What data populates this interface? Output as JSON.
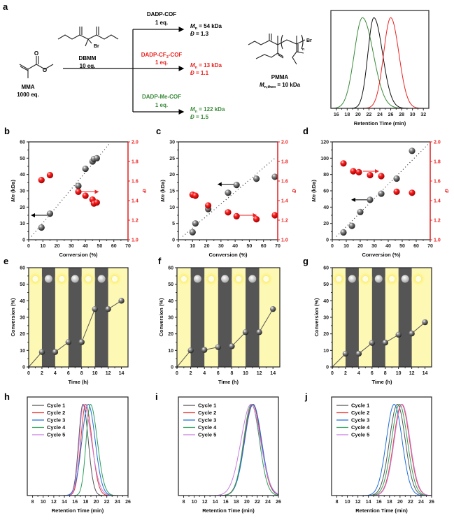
{
  "scheme": {
    "panel": "a",
    "monomer": "MMA",
    "monomer_eq": "1000 eq.",
    "initiator": "DBMM",
    "initiator_eq": "10 eq.",
    "br": "Br",
    "branches": [
      {
        "catalyst": "DADP-COF",
        "catalyst_sub": "",
        "catalyst_tail": "",
        "eq": "1 eq.",
        "mn_symbol": "M",
        "mn_sub": "n",
        "mn_value": " = 54 kDa",
        "d_symbol": "Đ",
        "d_value": " =  1.3",
        "color": "#000000"
      },
      {
        "catalyst": "DADP-CF",
        "catalyst_sub": "3",
        "catalyst_tail": "-COF",
        "eq": "1 eq.",
        "mn_symbol": "M",
        "mn_sub": "n",
        "mn_value": " = 13 kDa",
        "d_symbol": "Đ",
        "d_value": " =  1.1",
        "color": "#e8201e"
      },
      {
        "catalyst": "DADP-Me-COF",
        "catalyst_sub": "",
        "catalyst_tail": "",
        "eq": "1 eq.",
        "mn_symbol": "M",
        "mn_sub": "n",
        "mn_value": " = 122 kDa",
        "d_symbol": "Đ",
        "d_value": " =  1.5",
        "color": "#3a8a3a"
      }
    ],
    "product": "PMMA",
    "product_mn_symbol": "M",
    "product_mn_sub": "n,theo",
    "product_mn_value": " = 10 kDa",
    "repeat_n": "n"
  },
  "chart_data": [
    {
      "panel": "a",
      "type": "line",
      "title": "",
      "xlabel": "Retention Time (min)",
      "ylabel": "",
      "xlim": [
        15,
        33
      ],
      "ylim": [
        0,
        1.08
      ],
      "x_ticks": [
        "16",
        "18",
        "20",
        "22",
        "24",
        "26",
        "28",
        "30",
        "32"
      ],
      "x_tick_start": 16,
      "x_tick_step": 2,
      "series": [
        {
          "name": "DADP-Me-COF",
          "color": "#3a8a3a",
          "peak": 20.8,
          "width_left": 1.5,
          "width_right": 2.0
        },
        {
          "name": "DADP-COF",
          "color": "#111111",
          "peak": 22.9,
          "width_left": 1.1,
          "width_right": 1.6
        },
        {
          "name": "DADP-CF3-COF",
          "color": "#ee2222",
          "peak": 26.0,
          "width_left": 1.3,
          "width_right": 1.5
        }
      ],
      "legend": "none"
    },
    {
      "panel": "b",
      "type": "scatter",
      "xlabel": "Conversion (%)",
      "ylabel_symbol": "Mn",
      "ylabel": " (kDa)",
      "y2label": "Đ",
      "xlim": [
        0,
        70
      ],
      "ylim": [
        0,
        60
      ],
      "y2lim": [
        1.0,
        2.0
      ],
      "x_ticks": [
        "0",
        "10",
        "20",
        "30",
        "40",
        "50",
        "60",
        "70"
      ],
      "y_ticks": [
        "0",
        "10",
        "20",
        "30",
        "40",
        "50",
        "60"
      ],
      "y2_ticks": [
        "1.0",
        "1.2",
        "1.4",
        "1.6",
        "1.8",
        "2.0"
      ],
      "mn": {
        "x": [
          9,
          15,
          35,
          40,
          45,
          46,
          48
        ],
        "y": [
          7.5,
          16,
          33,
          43.5,
          48,
          49.5,
          50
        ]
      },
      "dispersity": {
        "x": [
          9,
          15,
          35,
          40,
          45,
          46,
          48
        ],
        "y": [
          1.61,
          1.66,
          1.49,
          1.45,
          1.41,
          1.37,
          1.38
        ]
      },
      "theory_line": {
        "x": [
          2,
          57
        ],
        "y": [
          2,
          59
        ]
      },
      "arrows": [
        {
          "axis": "left",
          "from": [
            13,
            15
          ],
          "to": [
            2,
            15
          ]
        },
        {
          "axis": "right",
          "from": [
            36,
            1.49
          ],
          "to": [
            49,
            1.49
          ]
        }
      ]
    },
    {
      "panel": "c",
      "type": "scatter",
      "xlabel": "Conversion (%)",
      "ylabel_symbol": "Mn",
      "ylabel": " (kDa)",
      "y2label": "Đ",
      "xlim": [
        0,
        70
      ],
      "ylim": [
        0,
        30
      ],
      "y2lim": [
        1.0,
        2.0
      ],
      "x_ticks": [
        "0",
        "10",
        "20",
        "30",
        "40",
        "50",
        "60",
        "70"
      ],
      "y_ticks": [
        "0",
        "5",
        "10",
        "15",
        "20",
        "25",
        "30"
      ],
      "y2_ticks": [
        "1.0",
        "1.2",
        "1.4",
        "1.6",
        "1.8",
        "2.0"
      ],
      "mn": {
        "x": [
          10,
          12,
          21,
          35,
          41,
          55,
          68
        ],
        "y": [
          2.3,
          5,
          9.4,
          14.4,
          16.8,
          18.7,
          19.3
        ]
      },
      "dispersity": {
        "x": [
          10,
          12,
          21,
          35,
          41,
          55,
          68
        ],
        "y": [
          1.46,
          1.45,
          1.35,
          1.28,
          1.24,
          1.21,
          1.25
        ]
      },
      "theory_line": {
        "x": [
          3,
          68
        ],
        "y": [
          1,
          25
        ]
      },
      "arrows": [
        {
          "axis": "left",
          "from": [
            39,
            17
          ],
          "to": [
            28,
            17
          ]
        },
        {
          "axis": "right",
          "from": [
            43,
            1.25
          ],
          "to": [
            55,
            1.25
          ]
        }
      ]
    },
    {
      "panel": "d",
      "type": "scatter",
      "xlabel": "Conversion (%)",
      "ylabel_symbol": "Mn",
      "ylabel": " (kDa)",
      "y2label": "Đ",
      "xlim": [
        0,
        70
      ],
      "ylim": [
        0,
        120
      ],
      "y2lim": [
        1.0,
        2.0
      ],
      "x_ticks": [
        "0",
        "10",
        "20",
        "30",
        "40",
        "50",
        "60",
        "70"
      ],
      "y_ticks": [
        "0",
        "20",
        "40",
        "60",
        "80",
        "100",
        "120"
      ],
      "y2_ticks": [
        "1.0",
        "1.2",
        "1.4",
        "1.6",
        "1.8",
        "2.0"
      ],
      "mn": {
        "x": [
          8,
          14,
          20,
          27,
          35,
          46,
          57
        ],
        "y": [
          9,
          17,
          34,
          49,
          56.5,
          75,
          109
        ]
      },
      "dispersity": {
        "x": [
          8,
          15,
          19,
          27,
          35,
          46,
          57
        ],
        "y": [
          1.78,
          1.7,
          1.69,
          1.66,
          1.65,
          1.49,
          1.48
        ]
      },
      "theory_line": {
        "x": [
          3,
          69
        ],
        "y": [
          4,
          118
        ]
      },
      "arrows": [
        {
          "axis": "left",
          "from": [
            25,
            49
          ],
          "to": [
            14,
            49
          ]
        },
        {
          "axis": "right",
          "from": [
            22,
            1.7
          ],
          "to": [
            33,
            1.7
          ]
        }
      ]
    },
    {
      "panel": "e",
      "type": "line",
      "xlabel": "Time (h)",
      "ylabel": "Conversion (%)",
      "xlim": [
        0,
        15
      ],
      "ylim": [
        0,
        60
      ],
      "x_ticks": [
        "0",
        "2",
        "4",
        "6",
        "8",
        "10",
        "12",
        "14"
      ],
      "y_ticks": [
        "0",
        "10",
        "20",
        "30",
        "40",
        "50",
        "60"
      ],
      "dark_intervals": [
        [
          2,
          4
        ],
        [
          6,
          8
        ],
        [
          10,
          12
        ]
      ],
      "x": [
        0,
        2,
        4,
        6,
        8,
        10,
        12,
        14
      ],
      "y": [
        0,
        9,
        9,
        15,
        15,
        35,
        35,
        40
      ]
    },
    {
      "panel": "f",
      "type": "line",
      "xlabel": "Time (h)",
      "ylabel": "Conversion (%)",
      "xlim": [
        0,
        15
      ],
      "ylim": [
        0,
        60
      ],
      "x_ticks": [
        "0",
        "2",
        "4",
        "6",
        "8",
        "10",
        "12",
        "14"
      ],
      "y_ticks": [
        "0",
        "10",
        "20",
        "30",
        "40",
        "50",
        "60"
      ],
      "dark_intervals": [
        [
          2,
          4
        ],
        [
          6,
          8
        ],
        [
          10,
          12
        ]
      ],
      "x": [
        0,
        2,
        4,
        6,
        8,
        10,
        12,
        14
      ],
      "y": [
        0,
        10,
        10.3,
        12,
        12.5,
        21,
        21,
        35
      ]
    },
    {
      "panel": "g",
      "type": "line",
      "xlabel": "Time (h)",
      "ylabel": "Conversion (%)",
      "xlim": [
        0,
        15
      ],
      "ylim": [
        0,
        60
      ],
      "x_ticks": [
        "0",
        "2",
        "4",
        "6",
        "8",
        "10",
        "12",
        "14"
      ],
      "y_ticks": [
        "0",
        "10",
        "20",
        "30",
        "40",
        "50",
        "60"
      ],
      "dark_intervals": [
        [
          2,
          4
        ],
        [
          6,
          8
        ],
        [
          10,
          12
        ]
      ],
      "x": [
        0,
        2,
        4,
        6,
        8,
        10,
        12,
        14
      ],
      "y": [
        0,
        8,
        8,
        14.5,
        14.7,
        19.5,
        20.2,
        27
      ]
    },
    {
      "panel": "h",
      "type": "line",
      "xlabel": "Retention Time (min)",
      "xlim": [
        7,
        26
      ],
      "ylim": [
        0,
        1.08
      ],
      "x_ticks": [
        "8",
        "10",
        "12",
        "14",
        "16",
        "18",
        "20",
        "22",
        "24",
        "26"
      ],
      "legend": "top-left",
      "series": [
        {
          "name": "Cycle 1",
          "color": "#555555",
          "peak": 17.5,
          "width_left": 0.8,
          "width_right": 1.0
        },
        {
          "name": "Cycle 2",
          "color": "#e53935",
          "peak": 18.0,
          "width_left": 0.9,
          "width_right": 1.2
        },
        {
          "name": "Cycle 3",
          "color": "#1e6fd9",
          "peak": 18.5,
          "width_left": 1.2,
          "width_right": 1.3
        },
        {
          "name": "Cycle 4",
          "color": "#2e9e5b",
          "peak": 18.9,
          "width_left": 0.8,
          "width_right": 1.3
        },
        {
          "name": "Cycle 5",
          "color": "#c77dde",
          "peak": 17.6,
          "width_left": 0.8,
          "width_right": 1.5
        }
      ]
    },
    {
      "panel": "i",
      "type": "line",
      "xlabel": "Retention Time (min)",
      "xlim": [
        7,
        26
      ],
      "ylim": [
        0,
        1.08
      ],
      "x_ticks": [
        "8",
        "10",
        "12",
        "14",
        "16",
        "18",
        "20",
        "22",
        "24",
        "26"
      ],
      "legend": "top-left",
      "series": [
        {
          "name": "Cycle 1",
          "color": "#555555",
          "peak": 21.1,
          "width_left": 1.6,
          "width_right": 1.6
        },
        {
          "name": "Cycle 2",
          "color": "#e53935",
          "peak": 21.1,
          "width_left": 1.6,
          "width_right": 1.6
        },
        {
          "name": "Cycle 3",
          "color": "#1e6fd9",
          "peak": 21.2,
          "width_left": 1.6,
          "width_right": 1.6
        },
        {
          "name": "Cycle 4",
          "color": "#2e9e5b",
          "peak": 20.9,
          "width_left": 1.5,
          "width_right": 1.5
        },
        {
          "name": "Cycle 5",
          "color": "#c77dde",
          "peak": 20.8,
          "width_left": 1.9,
          "width_right": 1.8
        }
      ]
    },
    {
      "panel": "j",
      "type": "line",
      "xlabel": "Retention Time (min)",
      "xlim": [
        7,
        26
      ],
      "ylim": [
        0,
        1.08
      ],
      "x_ticks": [
        "8",
        "10",
        "12",
        "14",
        "16",
        "18",
        "20",
        "22",
        "24",
        "26"
      ],
      "legend": "top-left",
      "series": [
        {
          "name": "Cycle 1",
          "color": "#555555",
          "peak": 19.5,
          "width_left": 1.5,
          "width_right": 1.5
        },
        {
          "name": "Cycle 2",
          "color": "#e53935",
          "peak": 20.3,
          "width_left": 1.5,
          "width_right": 1.5
        },
        {
          "name": "Cycle 3",
          "color": "#1e6fd9",
          "peak": 18.9,
          "width_left": 1.5,
          "width_right": 1.5
        },
        {
          "name": "Cycle 4",
          "color": "#2e9e5b",
          "peak": 19.9,
          "width_left": 1.5,
          "width_right": 1.5
        },
        {
          "name": "Cycle 5",
          "color": "#c77dde",
          "peak": 20.4,
          "width_left": 1.5,
          "width_right": 1.5
        }
      ]
    }
  ]
}
